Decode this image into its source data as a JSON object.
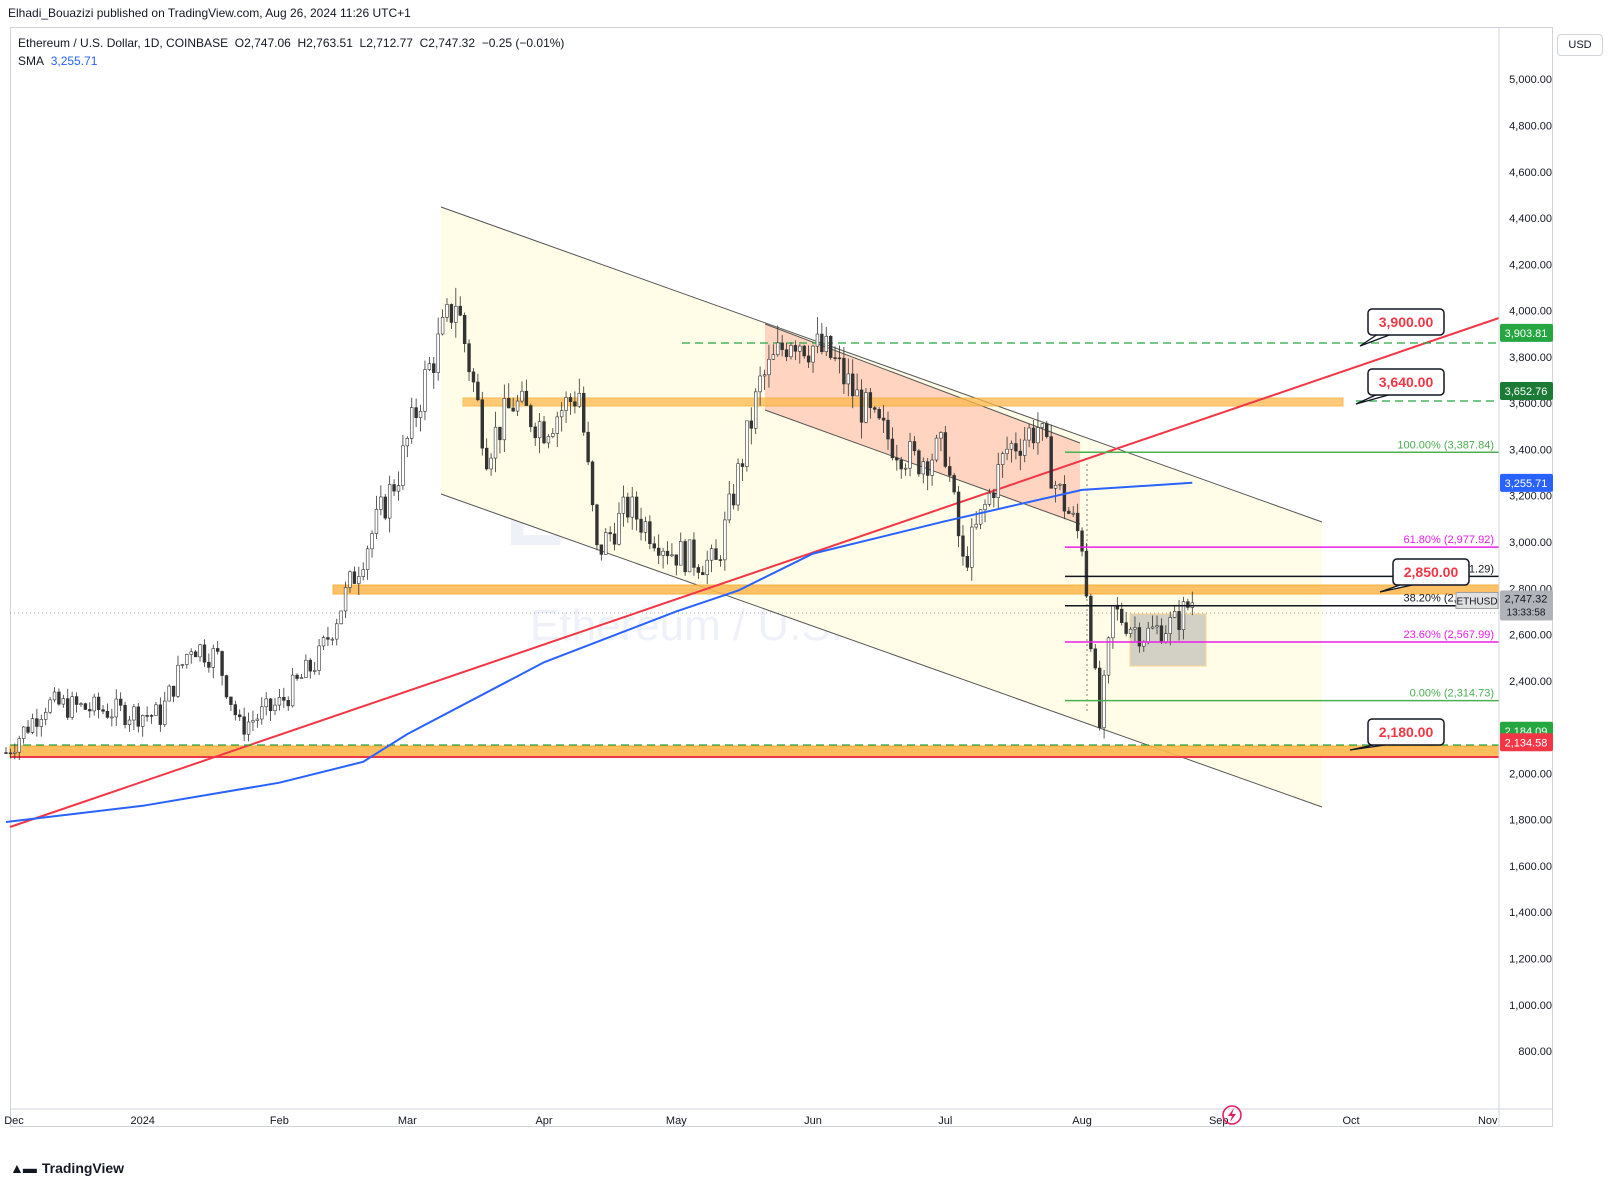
{
  "header": {
    "publisher": "Elhadi_Bouazizi published on TradingView.com, Aug 26, 2024 11:26 UTC+1"
  },
  "legend": {
    "symbol": "Ethereum / U.S. Dollar, 1D, COINBASE",
    "o_label": "O",
    "o": "2,747.06",
    "h_label": "H",
    "h": "2,763.51",
    "l_label": "L",
    "l": "2,712.77",
    "c_label": "C",
    "c": "2,747.32",
    "change": "−0.25 (−0.01%)",
    "sma_label": "SMA",
    "sma": "3,255.71"
  },
  "currency_button": "USD",
  "watermark": {
    "ticker": "ETHUSD, 1D",
    "name": "Ethereum / U.S. Dollar"
  },
  "brand": {
    "name": "TradingView"
  },
  "colors": {
    "red_line": "#f23645",
    "sma_line": "#2962ff",
    "green_dash": "#26a641",
    "orange_zone": "#ffb74d",
    "channel_fill": "#fffde7",
    "salmon_fill": "#ffcdb8",
    "fib_magenta": "#e91ee9",
    "fib_green": "#4caf50"
  },
  "chart_data": {
    "type": "line",
    "title": "Ethereum / U.S. Dollar, 1D, COINBASE",
    "x_ticks": [
      "Dec",
      "2024",
      "Feb",
      "Mar",
      "Apr",
      "May",
      "Jun",
      "Jul",
      "Aug",
      "Sep",
      "Oct",
      "Nov"
    ],
    "y_ticks": [
      "5,000.00",
      "4,800.00",
      "4,600.00",
      "4,400.00",
      "4,200.00",
      "4,000.00",
      "3,800.00",
      "3,600.00",
      "3,400.00",
      "3,200.00",
      "3,000.00",
      "2,800.00",
      "2,600.00",
      "2,400.00",
      "2,200.00",
      "2,000.00",
      "1,800.00",
      "1,600.00",
      "1,400.00",
      "1,200.00",
      "1,000.00",
      "800.00"
    ],
    "ylim": [
      630,
      5280
    ],
    "scale": "linear",
    "grid": false,
    "price_labels": [
      {
        "text": "3,903.81",
        "value": 3903.81,
        "color": "#26a641"
      },
      {
        "text": "3,652.76",
        "value": 3652.76,
        "color": "#1b7a35"
      },
      {
        "text": "3,255.71",
        "value": 3255.71,
        "color": "#2962ff"
      },
      {
        "text": "2,184.09",
        "value": 2184.09,
        "color": "#26a641"
      },
      {
        "text": "2,134.58",
        "value": 2134.58,
        "color": "#f23645"
      }
    ],
    "current_price": {
      "symbol": "ETHUSD",
      "price": "2,747.32",
      "countdown": "13:33:58",
      "value": 2747.32
    },
    "callouts": [
      {
        "text": "3,900.00",
        "value": 3900
      },
      {
        "text": "3,640.00",
        "value": 3640
      },
      {
        "text": "2,850.00",
        "value": 2850
      },
      {
        "text": "2,180.00",
        "value": 2180
      }
    ],
    "fib_levels": [
      {
        "label": "100.00% (3,387.84)",
        "value": 3387.84,
        "color": "#4caf50"
      },
      {
        "label": "61.80% (2,977.92)",
        "value": 2977.92,
        "color": "#e91ee9"
      },
      {
        "label": "50.00% (2,851.29)",
        "value": 2851.29,
        "color": "#131722"
      },
      {
        "label": "38.20% (2,724.66)",
        "value": 2724.66,
        "color": "#131722"
      },
      {
        "label": "23.60% (2,567.99)",
        "value": 2567.99,
        "color": "#e91ee9"
      },
      {
        "label": "0.00% (2,314.73)",
        "value": 2314.73,
        "color": "#4caf50"
      }
    ],
    "series": [
      {
        "name": "SMA",
        "points": [
          [
            "2023-12-01",
            1790
          ],
          [
            "2024-01-01",
            1860
          ],
          [
            "2024-02-01",
            1960
          ],
          [
            "2024-02-20",
            2050
          ],
          [
            "2024-03-01",
            2170
          ],
          [
            "2024-04-01",
            2480
          ],
          [
            "2024-05-01",
            2700
          ],
          [
            "2024-05-15",
            2790
          ],
          [
            "2024-06-01",
            2950
          ],
          [
            "2024-07-01",
            3090
          ],
          [
            "2024-08-01",
            3225
          ],
          [
            "2024-08-26",
            3255.71
          ]
        ]
      },
      {
        "name": "ETHUSD",
        "points": [
          [
            "2023-12-01",
            2090
          ],
          [
            "2023-12-10",
            2300
          ],
          [
            "2023-12-25",
            2270
          ],
          [
            "2024-01-05",
            2250
          ],
          [
            "2024-01-12",
            2560
          ],
          [
            "2024-01-18",
            2500
          ],
          [
            "2024-01-23",
            2200
          ],
          [
            "2024-02-01",
            2300
          ],
          [
            "2024-02-10",
            2500
          ],
          [
            "2024-02-20",
            2950
          ],
          [
            "2024-02-28",
            3300
          ],
          [
            "2024-03-05",
            3700
          ],
          [
            "2024-03-12",
            4050
          ],
          [
            "2024-03-19",
            3400
          ],
          [
            "2024-03-25",
            3600
          ],
          [
            "2024-04-01",
            3500
          ],
          [
            "2024-04-09",
            3650
          ],
          [
            "2024-04-13",
            2950
          ],
          [
            "2024-04-20",
            3150
          ],
          [
            "2024-04-30",
            2960
          ],
          [
            "2024-05-10",
            2900
          ],
          [
            "2024-05-20",
            3680
          ],
          [
            "2024-05-27",
            3900
          ],
          [
            "2024-06-05",
            3800
          ],
          [
            "2024-06-15",
            3500
          ],
          [
            "2024-06-24",
            3350
          ],
          [
            "2024-07-01",
            3400
          ],
          [
            "2024-07-05",
            2900
          ],
          [
            "2024-07-15",
            3400
          ],
          [
            "2024-07-22",
            3500
          ],
          [
            "2024-07-26",
            3250
          ],
          [
            "2024-08-01",
            3000
          ],
          [
            "2024-08-05",
            2200
          ],
          [
            "2024-08-08",
            2700
          ],
          [
            "2024-08-15",
            2600
          ],
          [
            "2024-08-22",
            2650
          ],
          [
            "2024-08-26",
            2747.32
          ]
        ]
      }
    ],
    "annotations": [
      "descending channel",
      "rising trendline",
      "resistance zones",
      "Fibonacci retracement"
    ]
  }
}
